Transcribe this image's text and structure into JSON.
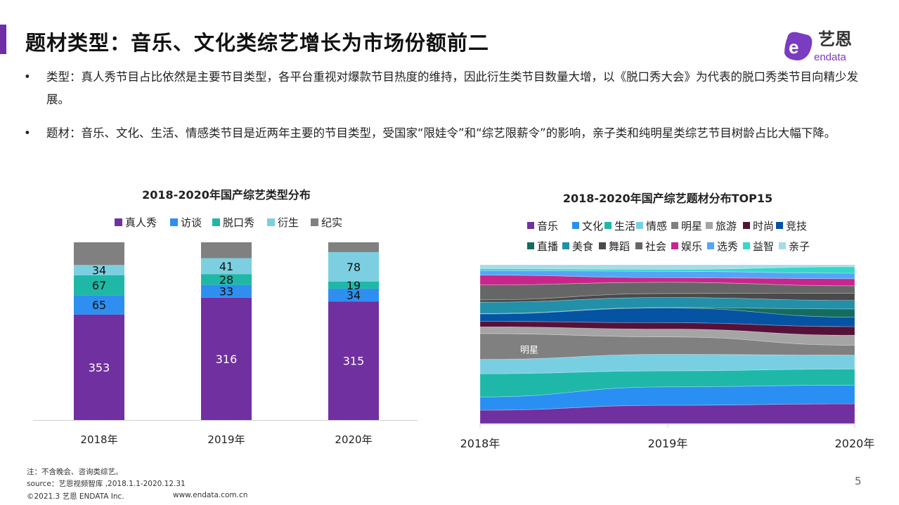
{
  "header": {
    "title": "题材类型：音乐、文化类综艺增长为市场份额前二",
    "logo_cn": "艺恩",
    "logo_en": "endata",
    "accent_color": "#6f2da8"
  },
  "bullets": [
    {
      "icon": "bullet-dot",
      "dot": "•",
      "text": "类型：真人秀节目占比依然是主要节目类型，各平台重视对爆款节目热度的维持，因此衍生类节目数量大增，以《脱口秀大会》为代表的脱口秀类节目向精少发展。"
    },
    {
      "icon": "bullet-dot",
      "dot": "•",
      "text": "题材：音乐、文化、生活、情感类节目是近两年主要的节目类型，受国家“限娃令”和“综艺限薪令”的影响，亲子类和纯明星类综艺节目树龄占比大幅下降。"
    }
  ],
  "chart_data": [
    {
      "type": "bar",
      "stacked": "percent",
      "title": "2018-2020年国产综艺类型分布",
      "legend_position": "top",
      "categories": [
        "2018年",
        "2019年",
        "2020年"
      ],
      "series": [
        {
          "name": "真人秀",
          "color": "#7030a0",
          "values": [
            353,
            316,
            315
          ],
          "labels": [
            "353",
            "316",
            "315"
          ]
        },
        {
          "name": "访谈",
          "color": "#2f8ff0",
          "values": [
            65,
            33,
            34
          ],
          "labels": [
            "65",
            "33",
            "34"
          ]
        },
        {
          "name": "脱口秀",
          "color": "#1fb8a6",
          "values": [
            67,
            28,
            19
          ],
          "labels": [
            "67",
            "28",
            "19"
          ]
        },
        {
          "name": "衍生",
          "color": "#7ccfe0",
          "values": [
            34,
            41,
            78
          ],
          "labels": [
            "34",
            "41",
            "78"
          ]
        },
        {
          "name": "纪实",
          "color": "#808080",
          "values": [
            76,
            41,
            26
          ],
          "labels": [
            "",
            "",
            ""
          ]
        }
      ],
      "grid": false
    },
    {
      "type": "area",
      "stacked": "percent",
      "title": "2018-2020年国产综艺题材分布TOP15",
      "legend_position": "top",
      "x": [
        "2018年",
        "2019年",
        "2020年"
      ],
      "annotation": "明星",
      "series": [
        {
          "name": "音乐",
          "color": "#7030a0",
          "values": [
            8.4,
            11.5,
            12.4
          ]
        },
        {
          "name": "文化",
          "color": "#2a8ff2",
          "values": [
            8.4,
            11.6,
            11.8
          ]
        },
        {
          "name": "生活",
          "color": "#1fb8a8",
          "values": [
            14.6,
            10.1,
            10.1
          ]
        },
        {
          "name": "情感",
          "color": "#78cfe2",
          "values": [
            9.1,
            10.4,
            8.7
          ]
        },
        {
          "name": "明星",
          "color": "#808080",
          "values": [
            16.3,
            11.0,
            6.3
          ]
        },
        {
          "name": "旅游",
          "color": "#a5a5a5",
          "values": [
            4.3,
            4.9,
            6.3
          ]
        },
        {
          "name": "时尚",
          "color": "#561139",
          "values": [
            3.4,
            4.0,
            5.4
          ]
        },
        {
          "name": "竞技",
          "color": "#0553a3",
          "values": [
            4.7,
            9.3,
            6.0
          ]
        },
        {
          "name": "直播",
          "color": "#146c5e",
          "values": [
            0.3,
            0.3,
            5.1
          ]
        },
        {
          "name": "美食",
          "color": "#2190a8",
          "values": [
            7.1,
            6.3,
            5.4
          ]
        },
        {
          "name": "舞蹈",
          "color": "#4a4a4a",
          "values": [
            1.5,
            2.5,
            4.6
          ]
        },
        {
          "name": "社会",
          "color": "#666666",
          "values": [
            9.4,
            7.1,
            4.6
          ]
        },
        {
          "name": "娱乐",
          "color": "#c9268c",
          "values": [
            6.2,
            2.9,
            4.4
          ]
        },
        {
          "name": "选秀",
          "color": "#55a5f7",
          "values": [
            2.9,
            4.0,
            3.5
          ]
        },
        {
          "name": "益智",
          "color": "#36d7cb",
          "values": [
            1.2,
            1.2,
            4.1
          ]
        },
        {
          "name": "亲子",
          "color": "#a6dbe8",
          "values": [
            2.4,
            2.9,
            1.2
          ]
        }
      ],
      "grid": false
    }
  ],
  "footer": {
    "note": "注：不含晚会、咨询类综艺。",
    "source": "source：艺恩视频智库 ,2018.1.1-2020.12.31",
    "copyright": "©2021.3 艺恩 ENDATA Inc.",
    "website": "www.endata.com.cn",
    "page_number": "5"
  }
}
